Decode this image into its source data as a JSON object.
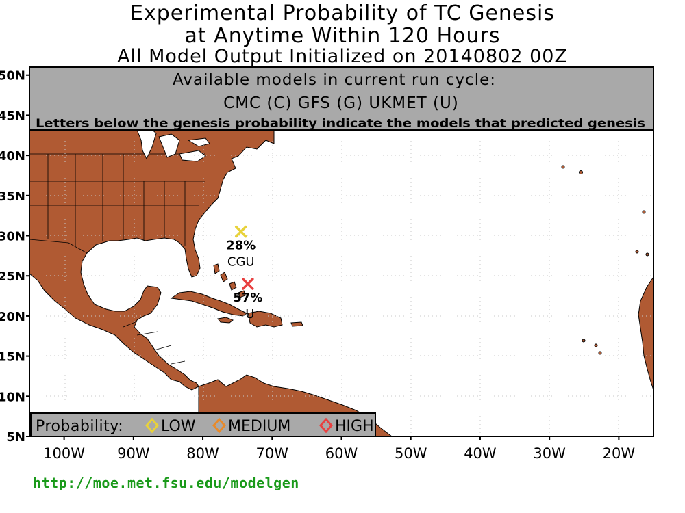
{
  "title": {
    "line1": "Experimental Probability of TC Genesis",
    "line2": "at Anytime Within 120 Hours",
    "line3": "All Model Output Initialized on 20140802 00Z"
  },
  "models_box": {
    "heading": "Available models in current run cycle:",
    "models": "CMC (C) GFS (G)  UKMET (U)",
    "note": "Letters below the genesis probability indicate the models that predicted genesis"
  },
  "axes": {
    "lon_labels": [
      "100W",
      "90W",
      "80W",
      "70W",
      "60W",
      "50W",
      "40W",
      "30W",
      "20W"
    ],
    "lat_labels": [
      "50N",
      "45N",
      "40N",
      "35N",
      "30N",
      "25N",
      "20N",
      "15N",
      "10N",
      "5N"
    ],
    "lon_range": [
      -105,
      -15
    ],
    "lat_range": [
      5,
      51
    ]
  },
  "genesis_points": [
    {
      "lon": -74.5,
      "lat": 30.5,
      "probability": "28%",
      "models": "CGU",
      "level": "low",
      "color": "#e8d23a"
    },
    {
      "lon": -73.5,
      "lat": 24.0,
      "probability": "57%",
      "models": "U",
      "level": "high",
      "color": "#e84040"
    }
  ],
  "legend": {
    "label": "Probability:",
    "items": [
      {
        "name": "LOW",
        "color": "#e8d23a"
      },
      {
        "name": "MEDIUM",
        "color": "#e88a2a"
      },
      {
        "name": "HIGH",
        "color": "#e84040"
      }
    ]
  },
  "colors": {
    "land": "#b05a33",
    "ocean": "#ffffff",
    "panel": "#a9a9a9"
  },
  "footer_url": "http://moe.met.fsu.edu/modelgen"
}
